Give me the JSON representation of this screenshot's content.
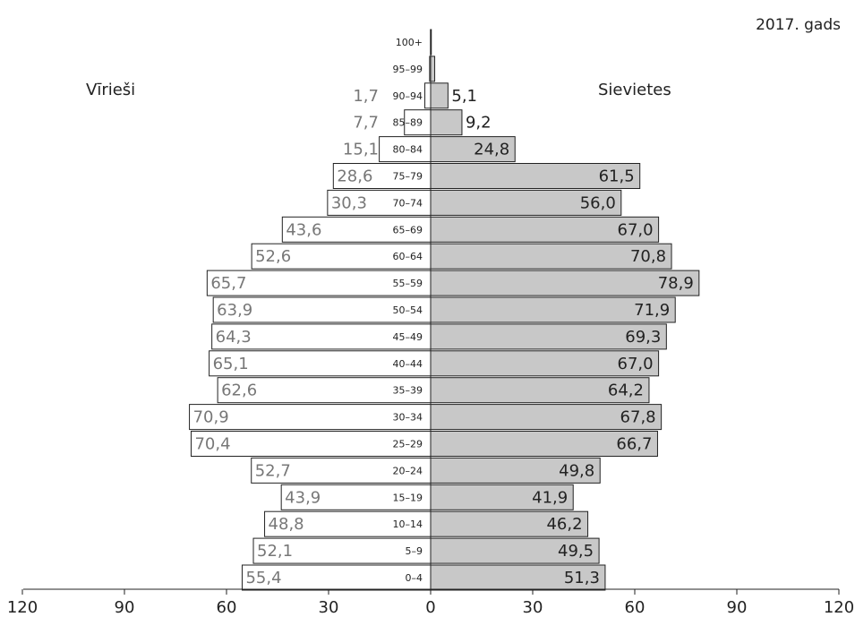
{
  "chart_data": {
    "type": "bar",
    "title": "2017. gads",
    "orientation": "population-pyramid",
    "categories": [
      "0–4",
      "5–9",
      "10–14",
      "15–19",
      "20–24",
      "25–29",
      "30–34",
      "35–39",
      "40–44",
      "45–49",
      "50–54",
      "55–59",
      "60–64",
      "65–69",
      "70–74",
      "75–79",
      "80–84",
      "85–89",
      "90–94",
      "95–99",
      "100+"
    ],
    "series": [
      {
        "name": "Vīrieši",
        "values": [
          55.4,
          52.1,
          48.8,
          43.9,
          52.7,
          70.4,
          70.9,
          62.6,
          65.1,
          64.3,
          63.9,
          65.7,
          52.6,
          43.6,
          30.3,
          28.6,
          15.1,
          7.7,
          1.7,
          0.3,
          0.05
        ],
        "labels": [
          "55,4",
          "52,1",
          "48,8",
          "43,9",
          "52,7",
          "70,4",
          "70,9",
          "62,6",
          "65,1",
          "64,3",
          "63,9",
          "65,7",
          "52,6",
          "43,6",
          "30,3",
          "28,6",
          "15,1",
          "7,7",
          "1,7",
          "",
          ""
        ],
        "fill": "#ffffff",
        "label_color": "#777777"
      },
      {
        "name": "Sievietes",
        "values": [
          51.3,
          49.5,
          46.2,
          41.9,
          49.8,
          66.7,
          67.8,
          64.2,
          67.0,
          69.3,
          71.9,
          78.9,
          70.8,
          67.0,
          56.0,
          61.5,
          24.8,
          9.2,
          5.1,
          1.2,
          0.2
        ],
        "labels": [
          "51,3",
          "49,5",
          "46,2",
          "41,9",
          "49,8",
          "66,7",
          "67,8",
          "64,2",
          "67,0",
          "69,3",
          "71,9",
          "78,9",
          "70,8",
          "67,0",
          "56,0",
          "61,5",
          "24,8",
          "9,2",
          "5,1",
          "",
          ""
        ],
        "fill": "#c8c8c8",
        "label_color": "#222222"
      }
    ],
    "xlim": [
      -120,
      120
    ],
    "x_ticks": [
      -120,
      -90,
      -60,
      -30,
      0,
      30,
      60,
      90,
      120
    ],
    "x_tick_labels": [
      "120",
      "90",
      "60",
      "30",
      "0",
      "30",
      "60",
      "90",
      "120"
    ],
    "grid": false
  }
}
